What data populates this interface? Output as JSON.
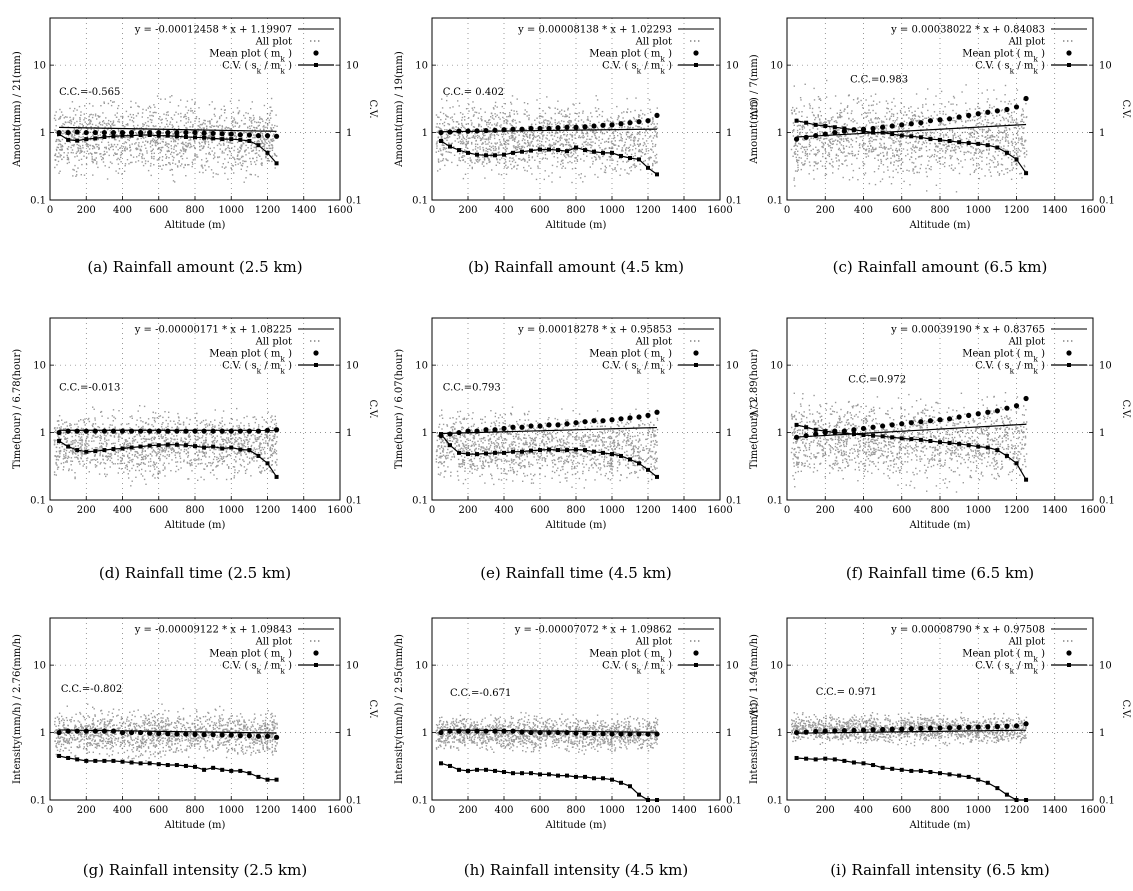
{
  "chart_data": [
    {
      "type": "scatter",
      "caption": "(a) Rainfall amount (2.5 km)",
      "ylabel": "Amount(mm) / 21(mm)",
      "xlabel": "Altitude (m)",
      "y2label": "C.V.",
      "xlim": [
        0,
        1600
      ],
      "ylim": [
        0.1,
        50
      ],
      "y2lim": [
        0.1,
        50
      ],
      "y_scale": "log",
      "y2_scale": "log",
      "xticks": [
        "0",
        "200",
        "400",
        "600",
        "800",
        "1000",
        "1200",
        "1400",
        "1600"
      ],
      "yticks": [
        "0.1",
        "1",
        "10"
      ],
      "y2ticks": [
        "0.1",
        "1",
        "10"
      ],
      "legend": {
        "fit": "y = -0.00012458 * x + 1.19907",
        "all": "All plot",
        "mean": "Mean plot ( m_k )",
        "cv": "C.V. ( s_k / m_k )"
      },
      "cc": "C.C.=-0.565",
      "cc_pos": [
        50,
        3.6
      ],
      "scatter_band": {
        "x_max": 1250,
        "y_low": 0.15,
        "y_high": 4.5
      },
      "fit": {
        "slope": -0.00012458,
        "intercept": 1.19907
      },
      "x": [
        50,
        100,
        150,
        200,
        250,
        300,
        350,
        400,
        450,
        500,
        550,
        600,
        650,
        700,
        750,
        800,
        850,
        900,
        950,
        1000,
        1050,
        1100,
        1150,
        1200,
        1250
      ],
      "mean": [
        1.0,
        1.0,
        1.02,
        1.0,
        1.0,
        1.0,
        1.0,
        1.0,
        1.0,
        1.0,
        1.0,
        1.0,
        1.0,
        1.0,
        1.0,
        1.0,
        0.98,
        0.97,
        0.96,
        0.95,
        0.93,
        0.92,
        0.9,
        0.9,
        0.88
      ],
      "cv": [
        0.95,
        0.78,
        0.76,
        0.8,
        0.82,
        0.86,
        0.88,
        0.9,
        0.9,
        0.92,
        0.92,
        0.9,
        0.9,
        0.88,
        0.86,
        0.85,
        0.84,
        0.82,
        0.8,
        0.8,
        0.78,
        0.75,
        0.65,
        0.5,
        0.35
      ]
    },
    {
      "type": "scatter",
      "caption": "(b) Rainfall amount (4.5 km)",
      "ylabel": "Amount(mm) / 19(mm)",
      "xlabel": "Altitude (m)",
      "y2label": "C.V.",
      "xlim": [
        0,
        1600
      ],
      "ylim": [
        0.1,
        50
      ],
      "y2lim": [
        0.1,
        50
      ],
      "y_scale": "log",
      "y2_scale": "log",
      "xticks": [
        "0",
        "200",
        "400",
        "600",
        "800",
        "1000",
        "1200",
        "1400",
        "1600"
      ],
      "yticks": [
        "0.1",
        "1",
        "10"
      ],
      "y2ticks": [
        "0.1",
        "1",
        "10"
      ],
      "legend": {
        "fit": "y = 0.00008138 * x + 1.02293",
        "all": "All plot",
        "mean": "Mean plot ( m_k )",
        "cv": "C.V. ( s_k / m_k )"
      },
      "cc": "C.C.= 0.402",
      "cc_pos": [
        60,
        3.6
      ],
      "scatter_band": {
        "x_max": 1250,
        "y_low": 0.15,
        "y_high": 4.5
      },
      "fit": {
        "slope": 8.138e-05,
        "intercept": 1.02293
      },
      "x": [
        50,
        100,
        150,
        200,
        250,
        300,
        350,
        400,
        450,
        500,
        550,
        600,
        650,
        700,
        750,
        800,
        850,
        900,
        950,
        1000,
        1050,
        1100,
        1150,
        1200,
        1250
      ],
      "mean": [
        1.0,
        1.02,
        1.05,
        1.05,
        1.06,
        1.07,
        1.08,
        1.1,
        1.12,
        1.12,
        1.15,
        1.15,
        1.15,
        1.18,
        1.2,
        1.2,
        1.22,
        1.25,
        1.28,
        1.3,
        1.35,
        1.4,
        1.45,
        1.5,
        1.8
      ],
      "cv": [
        0.75,
        0.62,
        0.55,
        0.5,
        0.47,
        0.46,
        0.46,
        0.47,
        0.5,
        0.52,
        0.54,
        0.56,
        0.56,
        0.55,
        0.53,
        0.6,
        0.55,
        0.52,
        0.5,
        0.5,
        0.45,
        0.42,
        0.4,
        0.3,
        0.24
      ]
    },
    {
      "type": "scatter",
      "caption": "(c) Rainfall amount (6.5 km)",
      "ylabel": "Amount(mm) / 7(mm)",
      "xlabel": "Altitude (m)",
      "y2label": "C.V.",
      "xlim": [
        0,
        1600
      ],
      "ylim": [
        0.1,
        50
      ],
      "y2lim": [
        0.1,
        50
      ],
      "y_scale": "log",
      "y2_scale": "log",
      "xticks": [
        "0",
        "200",
        "400",
        "600",
        "800",
        "1000",
        "1200",
        "1400",
        "1600"
      ],
      "yticks": [
        "0.1",
        "1",
        "10"
      ],
      "y2ticks": [
        "0.1",
        "1",
        "10"
      ],
      "legend": {
        "fit": "y = 0.00038022 * x + 0.84083",
        "all": "All plot",
        "mean": "Mean plot ( m_k )",
        "cv": "C.V. ( s_k / m_k )"
      },
      "cc": "C.C.=0.983",
      "cc_pos": [
        330,
        5.5
      ],
      "scatter_band": {
        "x_max": 1250,
        "y_low": 0.12,
        "y_high": 6.5
      },
      "fit": {
        "slope": 0.00038022,
        "intercept": 0.84083
      },
      "x": [
        50,
        100,
        150,
        200,
        250,
        300,
        350,
        400,
        450,
        500,
        550,
        600,
        650,
        700,
        750,
        800,
        850,
        900,
        950,
        1000,
        1050,
        1100,
        1150,
        1200,
        1250
      ],
      "mean": [
        0.8,
        0.85,
        0.9,
        0.95,
        1.0,
        1.05,
        1.1,
        1.12,
        1.15,
        1.2,
        1.25,
        1.3,
        1.35,
        1.4,
        1.5,
        1.55,
        1.6,
        1.7,
        1.8,
        1.9,
        2.0,
        2.1,
        2.2,
        2.4,
        3.2
      ],
      "cv": [
        1.5,
        1.4,
        1.3,
        1.25,
        1.2,
        1.15,
        1.1,
        1.05,
        1.0,
        1.0,
        0.95,
        0.9,
        0.88,
        0.85,
        0.8,
        0.78,
        0.75,
        0.72,
        0.7,
        0.68,
        0.65,
        0.6,
        0.5,
        0.4,
        0.25
      ]
    },
    {
      "type": "scatter",
      "caption": "(d) Rainfall time (2.5 km)",
      "ylabel": "Time(hour) / 6.78(hour)",
      "xlabel": "Altitude (m)",
      "y2label": "C.V.",
      "xlim": [
        0,
        1600
      ],
      "ylim": [
        0.1,
        50
      ],
      "y2lim": [
        0.1,
        50
      ],
      "y_scale": "log",
      "y2_scale": "log",
      "xticks": [
        "0",
        "200",
        "400",
        "600",
        "800",
        "1000",
        "1200",
        "1400",
        "1600"
      ],
      "yticks": [
        "0.1",
        "1",
        "10"
      ],
      "y2ticks": [
        "0.1",
        "1",
        "10"
      ],
      "legend": {
        "fit": "y = -0.00000171 * x + 1.08225",
        "all": "All plot",
        "mean": "Mean plot ( m_k )",
        "cv": "C.V. ( s_k / m_k )"
      },
      "cc": "C.C.=-0.013",
      "cc_pos": [
        50,
        4.2
      ],
      "scatter_band": {
        "x_max": 1250,
        "y_low": 0.15,
        "y_high": 3.0
      },
      "fit": {
        "slope": -1.71e-06,
        "intercept": 1.08225
      },
      "x": [
        50,
        100,
        150,
        200,
        250,
        300,
        350,
        400,
        450,
        500,
        550,
        600,
        650,
        700,
        750,
        800,
        850,
        900,
        950,
        1000,
        1050,
        1100,
        1150,
        1200,
        1250
      ],
      "mean": [
        1.0,
        1.05,
        1.05,
        1.05,
        1.05,
        1.05,
        1.05,
        1.05,
        1.05,
        1.05,
        1.05,
        1.05,
        1.05,
        1.05,
        1.05,
        1.05,
        1.05,
        1.05,
        1.05,
        1.05,
        1.05,
        1.05,
        1.05,
        1.08,
        1.1
      ],
      "cv": [
        0.75,
        0.62,
        0.55,
        0.52,
        0.53,
        0.55,
        0.57,
        0.58,
        0.6,
        0.62,
        0.64,
        0.65,
        0.66,
        0.66,
        0.65,
        0.63,
        0.6,
        0.62,
        0.58,
        0.6,
        0.56,
        0.55,
        0.45,
        0.35,
        0.22
      ]
    },
    {
      "type": "scatter",
      "caption": "(e) Rainfall time (4.5 km)",
      "ylabel": "Time(hour) / 6.07(hour)",
      "xlabel": "Altitude (m)",
      "y2label": "C.V.",
      "xlim": [
        0,
        1600
      ],
      "ylim": [
        0.1,
        50
      ],
      "y2lim": [
        0.1,
        50
      ],
      "y_scale": "log",
      "y2_scale": "log",
      "xticks": [
        "0",
        "200",
        "400",
        "600",
        "800",
        "1000",
        "1200",
        "1400",
        "1600"
      ],
      "yticks": [
        "0.1",
        "1",
        "10"
      ],
      "y2ticks": [
        "0.1",
        "1",
        "10"
      ],
      "legend": {
        "fit": "y = 0.00018278 * x + 0.95853",
        "all": "All plot",
        "mean": "Mean plot ( m_k )",
        "cv": "C.V. ( s_k / m_k )"
      },
      "cc": "C.C.=0.793",
      "cc_pos": [
        60,
        4.2
      ],
      "scatter_band": {
        "x_max": 1250,
        "y_low": 0.13,
        "y_high": 3.0
      },
      "fit": {
        "slope": 0.00018278,
        "intercept": 0.95853
      },
      "x": [
        50,
        100,
        150,
        200,
        250,
        300,
        350,
        400,
        450,
        500,
        550,
        600,
        650,
        700,
        750,
        800,
        850,
        900,
        950,
        1000,
        1050,
        1100,
        1150,
        1200,
        1250
      ],
      "mean": [
        0.9,
        0.95,
        1.0,
        1.05,
        1.05,
        1.1,
        1.1,
        1.15,
        1.2,
        1.2,
        1.25,
        1.25,
        1.3,
        1.3,
        1.35,
        1.4,
        1.45,
        1.5,
        1.5,
        1.55,
        1.6,
        1.65,
        1.7,
        1.8,
        2.0
      ],
      "cv": [
        0.95,
        0.65,
        0.5,
        0.48,
        0.48,
        0.49,
        0.5,
        0.5,
        0.52,
        0.52,
        0.54,
        0.55,
        0.56,
        0.55,
        0.55,
        0.56,
        0.55,
        0.52,
        0.5,
        0.48,
        0.45,
        0.4,
        0.35,
        0.28,
        0.22
      ]
    },
    {
      "type": "scatter",
      "caption": "(f) Rainfall time (6.5 km)",
      "ylabel": "Time(hour) / 2.89(hour)",
      "xlabel": "Altitude (m)",
      "y2label": "C.V.",
      "xlim": [
        0,
        1600
      ],
      "ylim": [
        0.1,
        50
      ],
      "y2lim": [
        0.1,
        50
      ],
      "y_scale": "log",
      "y2_scale": "log",
      "xticks": [
        "0",
        "200",
        "400",
        "600",
        "800",
        "1000",
        "1200",
        "1400",
        "1600"
      ],
      "yticks": [
        "0.1",
        "1",
        "10"
      ],
      "y2ticks": [
        "0.1",
        "1",
        "10"
      ],
      "legend": {
        "fit": "y = 0.00039190 * x + 0.83765",
        "all": "All plot",
        "mean": "Mean plot ( m_k )",
        "cv": "C.V. ( s_k / m_k )"
      },
      "cc": "C.C.=0.972",
      "cc_pos": [
        320,
        5.5
      ],
      "scatter_band": {
        "x_max": 1250,
        "y_low": 0.12,
        "y_high": 5.0
      },
      "fit": {
        "slope": 0.0003919,
        "intercept": 0.83765
      },
      "x": [
        50,
        100,
        150,
        200,
        250,
        300,
        350,
        400,
        450,
        500,
        550,
        600,
        650,
        700,
        750,
        800,
        850,
        900,
        950,
        1000,
        1050,
        1100,
        1150,
        1200,
        1250
      ],
      "mean": [
        0.85,
        0.9,
        0.95,
        1.0,
        1.05,
        1.05,
        1.1,
        1.15,
        1.2,
        1.25,
        1.3,
        1.35,
        1.4,
        1.45,
        1.5,
        1.55,
        1.6,
        1.7,
        1.8,
        1.9,
        2.0,
        2.1,
        2.3,
        2.5,
        3.2
      ],
      "cv": [
        1.3,
        1.2,
        1.1,
        1.05,
        1.0,
        0.98,
        0.95,
        0.92,
        0.9,
        0.88,
        0.85,
        0.82,
        0.8,
        0.78,
        0.75,
        0.72,
        0.7,
        0.68,
        0.65,
        0.62,
        0.6,
        0.55,
        0.45,
        0.35,
        0.2
      ]
    },
    {
      "type": "scatter",
      "caption": "(g) Rainfall intensity (2.5 km)",
      "ylabel": "Intensity(mm/h) / 2.76(mm/h)",
      "xlabel": "Altitude (m)",
      "y2label": "C.V.",
      "xlim": [
        0,
        1600
      ],
      "ylim": [
        0.1,
        50
      ],
      "y2lim": [
        0.1,
        50
      ],
      "y_scale": "log",
      "y2_scale": "log",
      "xticks": [
        "0",
        "200",
        "400",
        "600",
        "800",
        "1000",
        "1200",
        "1400",
        "1600"
      ],
      "yticks": [
        "0.1",
        "1",
        "10"
      ],
      "y2ticks": [
        "0.1",
        "1",
        "10"
      ],
      "legend": {
        "fit": "y = -0.00009122 * x + 1.09843",
        "all": "All plot",
        "mean": "Mean plot ( m_k )",
        "cv": "C.V. ( s_k / m_k )"
      },
      "cc": "C.C.=-0.802",
      "cc_pos": [
        60,
        4.0
      ],
      "scatter_band": {
        "x_max": 1250,
        "y_low": 0.35,
        "y_high": 2.8
      },
      "fit": {
        "slope": -9.122e-05,
        "intercept": 1.09843
      },
      "x": [
        50,
        100,
        150,
        200,
        250,
        300,
        350,
        400,
        450,
        500,
        550,
        600,
        650,
        700,
        750,
        800,
        850,
        900,
        950,
        1000,
        1050,
        1100,
        1150,
        1200,
        1250
      ],
      "mean": [
        1.0,
        1.05,
        1.05,
        1.05,
        1.05,
        1.05,
        1.05,
        1.0,
        1.0,
        1.0,
        0.98,
        0.97,
        0.96,
        0.95,
        0.95,
        0.94,
        0.93,
        0.93,
        0.92,
        0.92,
        0.9,
        0.9,
        0.88,
        0.88,
        0.85
      ],
      "cv": [
        0.45,
        0.42,
        0.4,
        0.38,
        0.38,
        0.38,
        0.38,
        0.37,
        0.36,
        0.35,
        0.35,
        0.34,
        0.33,
        0.33,
        0.32,
        0.31,
        0.28,
        0.3,
        0.28,
        0.27,
        0.27,
        0.25,
        0.22,
        0.2,
        0.2
      ]
    },
    {
      "type": "scatter",
      "caption": "(h) Rainfall intensity (4.5 km)",
      "ylabel": "Intensity(mm/h) / 2.95(mm/h)",
      "xlabel": "Altitude (m)",
      "y2label": "C.V.",
      "xlim": [
        0,
        1600
      ],
      "ylim": [
        0.1,
        50
      ],
      "y2lim": [
        0.1,
        50
      ],
      "y_scale": "log",
      "y2_scale": "log",
      "xticks": [
        "0",
        "200",
        "400",
        "600",
        "800",
        "1000",
        "1200",
        "1400",
        "1600"
      ],
      "yticks": [
        "0.1",
        "1",
        "10"
      ],
      "y2ticks": [
        "0.1",
        "1",
        "10"
      ],
      "legend": {
        "fit": "y = -0.00007072 * x + 1.09862",
        "all": "All plot",
        "mean": "Mean plot ( m_k )",
        "cv": "C.V. ( s_k / m_k )"
      },
      "cc": "C.C.=-0.671",
      "cc_pos": [
        100,
        3.5
      ],
      "scatter_band": {
        "x_max": 1250,
        "y_low": 0.45,
        "y_high": 2.2
      },
      "fit": {
        "slope": -7.072e-05,
        "intercept": 1.09862
      },
      "x": [
        50,
        100,
        150,
        200,
        250,
        300,
        350,
        400,
        450,
        500,
        550,
        600,
        650,
        700,
        750,
        800,
        850,
        900,
        950,
        1000,
        1050,
        1100,
        1150,
        1200,
        1250
      ],
      "mean": [
        1.0,
        1.05,
        1.05,
        1.05,
        1.05,
        1.05,
        1.05,
        1.05,
        1.05,
        1.02,
        1.0,
        1.0,
        1.0,
        1.0,
        1.0,
        0.98,
        0.97,
        0.97,
        0.96,
        0.95,
        0.95,
        0.95,
        0.95,
        0.95,
        0.95
      ],
      "cv": [
        0.35,
        0.32,
        0.28,
        0.27,
        0.28,
        0.28,
        0.27,
        0.26,
        0.25,
        0.25,
        0.25,
        0.24,
        0.24,
        0.23,
        0.23,
        0.22,
        0.22,
        0.21,
        0.21,
        0.2,
        0.18,
        0.16,
        0.12,
        0.1,
        0.1
      ]
    },
    {
      "type": "scatter",
      "caption": "(i) Rainfall intensity (6.5 km)",
      "ylabel": "Intensity(mm/h) / 1.94(mm/h)",
      "xlabel": "Altitude (m)",
      "y2label": "C.V.",
      "xlim": [
        0,
        1600
      ],
      "ylim": [
        0.1,
        50
      ],
      "y2lim": [
        0.1,
        50
      ],
      "y_scale": "log",
      "y2_scale": "log",
      "xticks": [
        "0",
        "200",
        "400",
        "600",
        "800",
        "1000",
        "1200",
        "1400",
        "1600"
      ],
      "yticks": [
        "0.1",
        "1",
        "10"
      ],
      "y2ticks": [
        "0.1",
        "1",
        "10"
      ],
      "legend": {
        "fit": "y = 0.00008790 * x + 0.97508",
        "all": "All plot",
        "mean": "Mean plot ( m_k )",
        "cv": "C.V. ( s_k / m_k )"
      },
      "cc": "C.C.= 0.971",
      "cc_pos": [
        150,
        3.6
      ],
      "scatter_band": {
        "x_max": 1250,
        "y_low": 0.6,
        "y_high": 2.2
      },
      "fit": {
        "slope": 8.79e-05,
        "intercept": 0.97508
      },
      "x": [
        50,
        100,
        150,
        200,
        250,
        300,
        350,
        400,
        450,
        500,
        550,
        600,
        650,
        700,
        750,
        800,
        850,
        900,
        950,
        1000,
        1050,
        1100,
        1150,
        1200,
        1250
      ],
      "mean": [
        1.0,
        1.02,
        1.04,
        1.05,
        1.06,
        1.07,
        1.08,
        1.09,
        1.1,
        1.11,
        1.12,
        1.13,
        1.14,
        1.15,
        1.16,
        1.17,
        1.18,
        1.19,
        1.2,
        1.21,
        1.22,
        1.23,
        1.24,
        1.26,
        1.35
      ],
      "cv": [
        0.42,
        0.41,
        0.4,
        0.41,
        0.4,
        0.38,
        0.36,
        0.35,
        0.33,
        0.3,
        0.29,
        0.28,
        0.27,
        0.27,
        0.26,
        0.25,
        0.24,
        0.23,
        0.22,
        0.2,
        0.18,
        0.15,
        0.12,
        0.1,
        0.1
      ]
    }
  ]
}
